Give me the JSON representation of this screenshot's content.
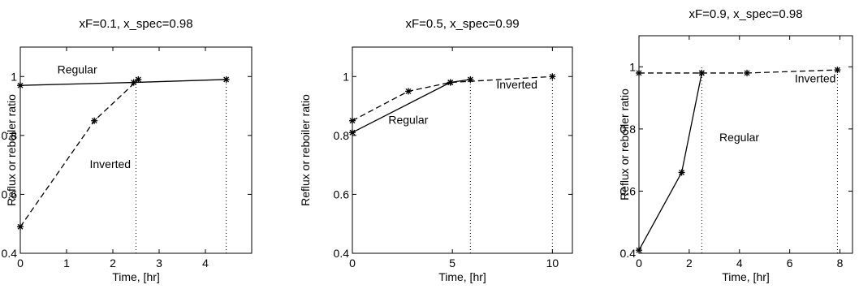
{
  "chart_data": [
    {
      "type": "line",
      "title": "xF=0.1, x_spec=0.98",
      "xlabel": "Time, [hr]",
      "ylabel": "Reflux or reboiler ratio",
      "xlim": [
        0,
        5
      ],
      "ylim": [
        0.4,
        1.1
      ],
      "xticks": [
        0,
        1,
        2,
        3,
        4
      ],
      "yticks": [
        0.4,
        0.6,
        0.8,
        1
      ],
      "ytick_labels": [
        "0.4",
        "0.6",
        "0.8",
        "1"
      ],
      "grid": false,
      "series": [
        {
          "name": "Regular",
          "style": "solid",
          "x": [
            0,
            2.45,
            4.45
          ],
          "y": [
            0.97,
            0.98,
            0.99
          ]
        },
        {
          "name": "Inverted",
          "style": "dashed",
          "x": [
            0,
            1.6,
            2.55
          ],
          "y": [
            0.49,
            0.85,
            0.99
          ]
        }
      ],
      "vlines": [
        2.5,
        4.45
      ],
      "annotations": [
        {
          "text": "Regular",
          "x": 0.8,
          "y": 1.01
        },
        {
          "text": "Inverted",
          "x": 1.5,
          "y": 0.69
        }
      ]
    },
    {
      "type": "line",
      "title": "xF=0.5, x_spec=0.99",
      "xlabel": "Time, [hr]",
      "ylabel": "Reflux or reboiler ratio",
      "xlim": [
        0,
        11
      ],
      "ylim": [
        0.4,
        1.1
      ],
      "xticks": [
        0,
        5,
        10
      ],
      "yticks": [
        0.4,
        0.6,
        0.8,
        1
      ],
      "ytick_labels": [
        "0.4",
        "0.6",
        "0.8",
        "1"
      ],
      "grid": false,
      "series": [
        {
          "name": "Regular",
          "style": "solid",
          "x": [
            0,
            4.9,
            5.9
          ],
          "y": [
            0.81,
            0.98,
            0.99
          ]
        },
        {
          "name": "Inverted",
          "style": "dashed",
          "x": [
            0,
            2.8,
            4.9,
            10
          ],
          "y": [
            0.85,
            0.95,
            0.98,
            1.0
          ]
        }
      ],
      "vlines": [
        5.9,
        10
      ],
      "annotations": [
        {
          "text": "Regular",
          "x": 1.8,
          "y": 0.84
        },
        {
          "text": "Inverted",
          "x": 7.2,
          "y": 0.96
        }
      ]
    },
    {
      "type": "line",
      "title": "xF=0.9, x_spec=0.98",
      "xlabel": "Time, [hr]",
      "ylabel": "Reflux or reboiler ratio",
      "xlim": [
        0,
        8.5
      ],
      "ylim": [
        0.4,
        1.1
      ],
      "xticks": [
        0,
        2,
        4,
        6,
        8
      ],
      "yticks": [
        0.4,
        0.6,
        0.8,
        1
      ],
      "ytick_labels": [
        "0.4",
        "0.6",
        "0.8",
        "1"
      ],
      "grid": false,
      "series": [
        {
          "name": "Regular",
          "style": "solid",
          "x": [
            0,
            1.7,
            2.5
          ],
          "y": [
            0.41,
            0.66,
            0.98
          ]
        },
        {
          "name": "Inverted",
          "style": "dashed",
          "x": [
            0,
            2.5,
            4.3,
            7.9
          ],
          "y": [
            0.98,
            0.98,
            0.98,
            0.99
          ]
        }
      ],
      "vlines": [
        2.5,
        7.9
      ],
      "annotations": [
        {
          "text": "Regular",
          "x": 3.2,
          "y": 0.76
        },
        {
          "text": "Inverted",
          "x": 6.2,
          "y": 0.95
        }
      ]
    }
  ]
}
